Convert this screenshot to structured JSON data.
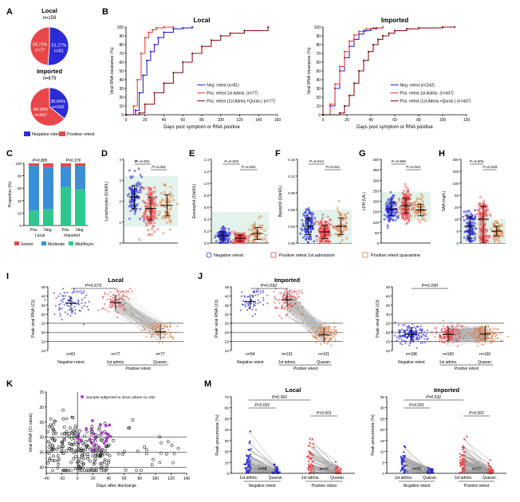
{
  "panel_letters": {
    "A": "A",
    "B": "B",
    "C": "C",
    "D": "D",
    "E": "E",
    "F": "F",
    "G": "G",
    "H": "H",
    "I": "I",
    "J": "J",
    "K": "K",
    "M": "M"
  },
  "colors": {
    "blue": "#2b2bd6",
    "red": "#e8474a",
    "darkred": "#8b1a1a",
    "orange": "#e07a3c",
    "gray": "#9a9a9a",
    "green": "#2dc98c",
    "shade": "#e3f3ec",
    "severe": "#e8474a",
    "moderate": "#3a8fd6",
    "mild": "#2dc98c"
  },
  "chart_data": [
    {
      "id": "A_local",
      "type": "pie",
      "title": "Local",
      "subtitle": "n=158",
      "slices": [
        {
          "label": "51.27%",
          "sublabel": "n=81",
          "value": 51.27,
          "color": "#2b2bd6"
        },
        {
          "label": "48.73%",
          "sublabel": "n=77",
          "value": 48.73,
          "color": "#e8474a"
        }
      ]
    },
    {
      "id": "A_imported",
      "type": "pie",
      "title": "Imported",
      "subtitle": "n=679",
      "slices": [
        {
          "label": "35.64%",
          "sublabel": "n=242",
          "value": 35.64,
          "color": "#2b2bd6"
        },
        {
          "label": "64.36%",
          "sublabel": "n=437",
          "value": 64.36,
          "color": "#e8474a"
        }
      ],
      "legend": [
        "Negative retest",
        "Positive retest"
      ]
    },
    {
      "id": "B_local",
      "type": "line",
      "title": "Local",
      "xlabel": "Days post symptom or RNA positive",
      "ylabel": "Viral RNA clearance (%)",
      "xlim": [
        0,
        160
      ],
      "ylim": [
        0,
        100
      ],
      "xticks": [
        "0",
        "20",
        "40",
        "60",
        "80",
        "100",
        "120",
        "140",
        "160"
      ],
      "yticks": [
        "0",
        "10",
        "20",
        "30",
        "40",
        "50",
        "60",
        "70",
        "80",
        "90",
        "100"
      ],
      "series": [
        {
          "name": "Neg. retest (n=81)",
          "color": "#2b2bd6",
          "x": [
            0,
            10,
            14,
            18,
            22,
            26,
            30,
            34,
            40,
            50,
            60,
            70
          ],
          "y": [
            0,
            5,
            25,
            45,
            62,
            72,
            80,
            88,
            94,
            98,
            99,
            100
          ]
        },
        {
          "name": "Pos. retest 1st Admis. (n=77)",
          "color": "#e8474a",
          "x": [
            0,
            8,
            12,
            16,
            20,
            24,
            28,
            32,
            40,
            50
          ],
          "y": [
            0,
            10,
            40,
            70,
            88,
            94,
            97,
            99,
            100,
            100
          ]
        },
        {
          "name": "Pos. retest (1st Admis.+Quran.) (n=77)",
          "color": "#8b1a1a",
          "x": [
            0,
            14,
            20,
            30,
            40,
            50,
            60,
            70,
            80,
            90,
            100,
            110,
            125,
            150
          ],
          "y": [
            0,
            2,
            12,
            25,
            36,
            48,
            60,
            70,
            78,
            85,
            90,
            93,
            96,
            100
          ]
        }
      ]
    },
    {
      "id": "B_imported",
      "type": "line",
      "title": "Imported",
      "xlabel": "Days post symptom or RNA positive",
      "ylabel": "Viral RNA clearance (%)",
      "xlim": [
        0,
        120
      ],
      "ylim": [
        0,
        100
      ],
      "xticks": [
        "0",
        "20",
        "40",
        "60",
        "80",
        "100",
        "120"
      ],
      "yticks": [
        "0",
        "10",
        "20",
        "30",
        "40",
        "50",
        "60",
        "70",
        "80",
        "90",
        "100"
      ],
      "series": [
        {
          "name": "Neg. retest (n=242)",
          "color": "#2b2bd6",
          "x": [
            0,
            6,
            10,
            14,
            18,
            22,
            26,
            30,
            34,
            40,
            45,
            50
          ],
          "y": [
            0,
            10,
            30,
            50,
            65,
            78,
            86,
            92,
            96,
            98,
            99,
            100
          ]
        },
        {
          "name": "Pos. retest 1st Admis. (n=437)",
          "color": "#e8474a",
          "x": [
            0,
            6,
            10,
            14,
            18,
            22,
            26,
            30,
            36,
            42,
            50
          ],
          "y": [
            0,
            12,
            35,
            55,
            72,
            84,
            91,
            95,
            98,
            99,
            100
          ]
        },
        {
          "name": "Pos. retest (1st Admis.+Quran.) (n=437)",
          "color": "#8b1a1a",
          "x": [
            0,
            14,
            18,
            22,
            26,
            30,
            34,
            38,
            42,
            46,
            50,
            55,
            60,
            70,
            80,
            100,
            110
          ],
          "y": [
            0,
            2,
            10,
            22,
            36,
            50,
            62,
            72,
            80,
            86,
            90,
            93,
            96,
            98,
            99,
            100,
            100
          ]
        }
      ]
    },
    {
      "id": "C",
      "type": "bar",
      "ylabel": "Proportion (%)",
      "ylim": [
        0,
        100
      ],
      "yticks": [
        "0",
        "20",
        "40",
        "60",
        "80",
        "100"
      ],
      "categories": [
        "Pos.",
        "Neg.",
        "Pos.",
        "Neg."
      ],
      "groups": [
        "Local",
        "Imported"
      ],
      "pvalues": [
        "P=0.885",
        "P=0.376"
      ],
      "series": [
        {
          "name": "Mild/Asym.",
          "values": [
            24,
            26,
            62,
            58
          ]
        },
        {
          "name": "Moderate",
          "values": [
            72,
            68,
            33,
            38
          ]
        },
        {
          "name": "Severe",
          "values": [
            4,
            6,
            5,
            4
          ]
        }
      ],
      "legend": [
        "Severe",
        "Moderate",
        "Mild/Asym."
      ]
    },
    {
      "id": "D",
      "type": "scatter",
      "ylabel": "Lymphocytes (10e9/L)",
      "ylim": [
        0,
        4
      ],
      "yticks": [
        "0",
        "1",
        "2",
        "3",
        "4"
      ],
      "pvalues": [
        "P=0.001",
        "P=0.001"
      ],
      "means": [
        2.2,
        1.65,
        1.8
      ],
      "sds": [
        0.55,
        0.55,
        0.5
      ],
      "shade": [
        0.8,
        3.2
      ]
    },
    {
      "id": "E",
      "type": "scatter",
      "ylabel": "Eosinophil (10e9/L)",
      "ylim": [
        0,
        1.4
      ],
      "yticks": [
        "0.0",
        "0.2",
        "0.4",
        "0.6",
        "0.8",
        "1.0",
        "1.2",
        "1.4"
      ],
      "pvalues": [
        "P=0.003",
        "P=0.001"
      ],
      "means": [
        0.12,
        0.08,
        0.16
      ],
      "sds": [
        0.07,
        0.05,
        0.1
      ],
      "shade": [
        0.02,
        0.52
      ]
    },
    {
      "id": "F",
      "type": "scatter",
      "ylabel": "Basophil (10e9/L)",
      "ylim": [
        0,
        0.15
      ],
      "yticks": [
        "0.00",
        "0.03",
        "0.06",
        "0.09",
        "0.12",
        "0.15"
      ],
      "pvalues": [
        "P=0.013",
        "P=0.011"
      ],
      "means": [
        0.03,
        0.02,
        0.03
      ],
      "sds": [
        0.015,
        0.012,
        0.015
      ],
      "shade": [
        0,
        0.06
      ]
    },
    {
      "id": "G",
      "type": "scatter",
      "ylabel": "LDH (U/L)",
      "ylim": [
        0,
        400
      ],
      "yticks": [
        "0",
        "50",
        "100",
        "150",
        "200",
        "250",
        "300",
        "350",
        "400"
      ],
      "pvalues": [
        "P=0.006",
        "P=0.001"
      ],
      "means": [
        162,
        178,
        158
      ],
      "sds": [
        30,
        35,
        28
      ],
      "shade": [
        109,
        245
      ]
    },
    {
      "id": "H",
      "type": "scatter",
      "ylabel": "SAA (mg/L)",
      "ylim": [
        0,
        300
      ],
      "yticks": [
        "0",
        "5",
        "10",
        "20",
        "50",
        "100",
        "200",
        "300"
      ],
      "pvalues": [
        "P=0.003",
        "P=0.028"
      ],
      "means": [
        7,
        10,
        5
      ],
      "sds": [
        5,
        12,
        2
      ],
      "shade": [
        0,
        10
      ]
    },
    {
      "id": "I",
      "type": "scatter",
      "title": "Local",
      "ylabel": "Peak viral RNA (Ct)",
      "ylim": [
        10,
        45
      ],
      "yticks": [
        "10",
        "15",
        "20",
        "25",
        "30",
        "35",
        "40",
        "45"
      ],
      "pvalue": "P=0.675",
      "cts": [
        "Ct=19",
        "Ct=18.7",
        "Ct=34.7"
      ],
      "means": [
        19,
        18.7,
        34.7
      ],
      "ns": [
        "n=81",
        "n=77",
        "n=77"
      ],
      "xcats": [
        "Negative retest",
        "1st admis.",
        "Quaran."
      ],
      "group": "Positive retest"
    },
    {
      "id": "J_left",
      "type": "scatter",
      "title": "Imported",
      "ylabel": "Peak viral RNA (Ct)",
      "ylim": [
        10,
        45
      ],
      "yticks": [
        "10",
        "15",
        "20",
        "25",
        "30",
        "35",
        "40",
        "45"
      ],
      "pvalue": "P=0.092",
      "cts": [
        "Ct=18",
        "Ct=17",
        "Ct=36.3"
      ],
      "means": [
        18,
        17,
        36.3
      ],
      "ns": [
        "n=54",
        "n=101",
        "n=101"
      ],
      "xcats": [
        "Negative retest",
        "1st admis.",
        "Quaran."
      ],
      "group": "Postive retest"
    },
    {
      "id": "J_right",
      "type": "scatter",
      "ylabel": "Peak viral RNA (Ct)",
      "ylim": [
        10,
        45
      ],
      "yticks": [
        "10",
        "15",
        "20",
        "25",
        "30",
        "35",
        "40",
        "45"
      ],
      "pvalue": "P=0.090",
      "means": [
        36,
        36,
        35.8
      ],
      "ns": [
        "n=188",
        "n=160",
        "n=160"
      ],
      "xcats": [
        "Negative retest",
        "1st admis.",
        "Quaran."
      ],
      "group": "Postive retest"
    },
    {
      "id": "K",
      "type": "scatter",
      "xlabel": "Days after discharge",
      "ylabel": "Viral RNA (Ct value)",
      "xlim": [
        -40,
        140
      ],
      "ylim": [
        15,
        42
      ],
      "xticks": [
        "-40",
        "-20",
        "0",
        "20",
        "40",
        "60",
        "80",
        "100",
        "120",
        "140"
      ],
      "yticks": [
        "15",
        "20",
        "25",
        "30",
        "35",
        "40"
      ],
      "legend": "Sample subjected to virus culture (n=25)"
    },
    {
      "id": "M_local",
      "type": "scatter",
      "title": "Local",
      "ylabel": "Peak pneumonia (%)",
      "ylim": [
        0,
        70
      ],
      "yticks": [
        "0",
        "10",
        "20",
        "30",
        "40",
        "50",
        "60",
        "70"
      ],
      "pvalues": [
        "P=0.960",
        "P<0.001",
        "P<0.001"
      ],
      "ns": [
        "n=58",
        "n=49"
      ],
      "xcats": [
        "1st admis.",
        "Quaran.",
        "1st admis.",
        "Quaran."
      ],
      "groups": [
        "Negative retest",
        "Positive retest"
      ]
    },
    {
      "id": "M_imported",
      "type": "scatter",
      "title": "Imported",
      "ylabel": "Peak pneumonia (%)",
      "ylim": [
        0,
        35
      ],
      "yticks": [
        "0",
        "5",
        "10",
        "15",
        "20",
        "25",
        "30",
        "35"
      ],
      "pvalues": [
        "P=0.532",
        "P<0.001",
        "P<0.001"
      ],
      "ns": [
        "n=50",
        "n=77"
      ],
      "xcats": [
        "1st admis.",
        "Quaran.",
        "1st admis.",
        "Quaran."
      ],
      "groups": [
        "Negative retest",
        "Positive retest"
      ]
    }
  ],
  "legend_DH": [
    "Negative retest",
    "Positive retest 1st admission",
    "Positive retest quarantine"
  ]
}
